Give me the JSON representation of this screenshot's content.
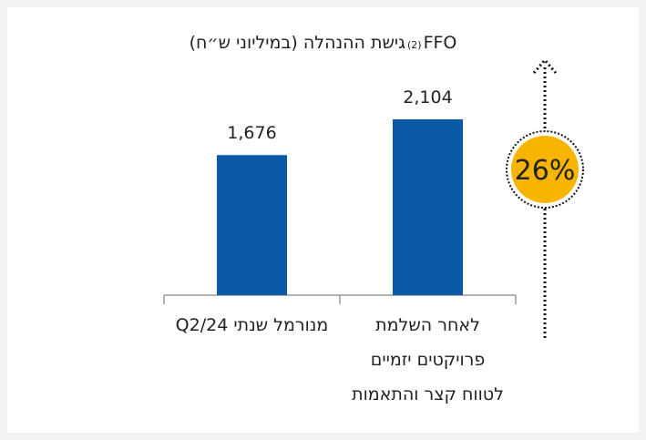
{
  "chart_data": {
    "type": "bar",
    "title_prefix": "FFO",
    "title_footnote": "(2)",
    "title": "גישת ההנהלה (במיליוני ש״ח)",
    "categories": [
      "מנורמל שנתי Q2/24",
      "לאחר השלמת\nפרויקטים יזמיים\nלטווח קצר והתאמות"
    ],
    "values": [
      1676,
      2104
    ],
    "value_labels": [
      "1,676",
      "2,104"
    ],
    "color": "#0a5aa5",
    "ylim": [
      0,
      2300
    ],
    "annotation": "26%"
  }
}
